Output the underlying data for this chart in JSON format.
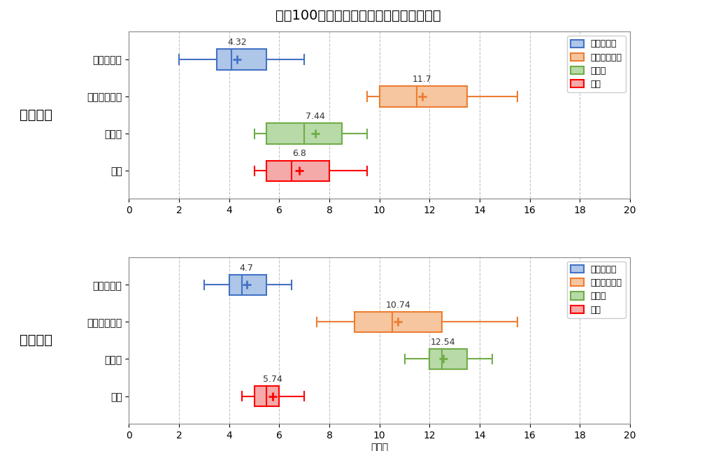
{
  "title": "生從100名あたりの国公立の合格実績比較",
  "school1_label": "水戸一高",
  "school2_label": "土浦一高",
  "categories": [
    "東大・京大",
    "他旧帝＆一工",
    "筑横千",
    "茨大"
  ],
  "legend_labels": [
    "東大・京大",
    "他旧帝＆一工",
    "筑横千",
    "茨大"
  ],
  "legend_labels_display": [
    "東大・京大",
    "他旧帝＆一工",
    "筑横千",
    "茨大"
  ],
  "xlabel": "（人）",
  "xlim": [
    0,
    20
  ],
  "xticks": [
    0,
    2,
    4,
    6,
    8,
    10,
    12,
    14,
    16,
    18,
    20
  ],
  "colors": {
    "東大・京大": "#4472C4",
    "他旧帝＆一工": "#ED7D31",
    "筑横千": "#70AD47",
    "茨大": "#FF0000"
  },
  "face_colors": {
    "東大・京大": "#AEC6E8",
    "他旧帝＆一工": "#F5C6A0",
    "筑横千": "#B8D9A8",
    "茨大": "#F5AAAA"
  },
  "school1": {
    "東大・京大": {
      "whislo": 2.0,
      "q1": 3.5,
      "med": 4.1,
      "mean": 4.32,
      "q3": 5.5,
      "whishi": 7.0
    },
    "他旧帝＆一工": {
      "whislo": 9.5,
      "q1": 10.0,
      "med": 11.5,
      "mean": 11.7,
      "q3": 13.5,
      "whishi": 15.5
    },
    "筑横千": {
      "whislo": 5.0,
      "q1": 5.5,
      "med": 7.0,
      "mean": 7.44,
      "q3": 8.5,
      "whishi": 9.5
    },
    "茨大": {
      "whislo": 5.0,
      "q1": 5.5,
      "med": 6.5,
      "mean": 6.8,
      "q3": 8.0,
      "whishi": 9.5
    }
  },
  "school2": {
    "東大・京大": {
      "whislo": 3.0,
      "q1": 4.0,
      "med": 4.5,
      "mean": 4.7,
      "q3": 5.5,
      "whishi": 6.5
    },
    "他旧帝＆一工": {
      "whislo": 7.5,
      "q1": 9.0,
      "med": 10.5,
      "mean": 10.74,
      "q3": 12.5,
      "whishi": 15.5
    },
    "筑横千": {
      "whislo": 11.0,
      "q1": 12.0,
      "med": 12.5,
      "mean": 12.54,
      "q3": 13.5,
      "whishi": 14.5
    },
    "茨大": {
      "whislo": 4.5,
      "q1": 5.0,
      "med": 5.5,
      "mean": 5.74,
      "q3": 6.0,
      "whishi": 7.0
    }
  },
  "background_color": "#FFFFFF",
  "plot_bg_color": "#FFFFFF",
  "grid_color": "#AAAAAA"
}
